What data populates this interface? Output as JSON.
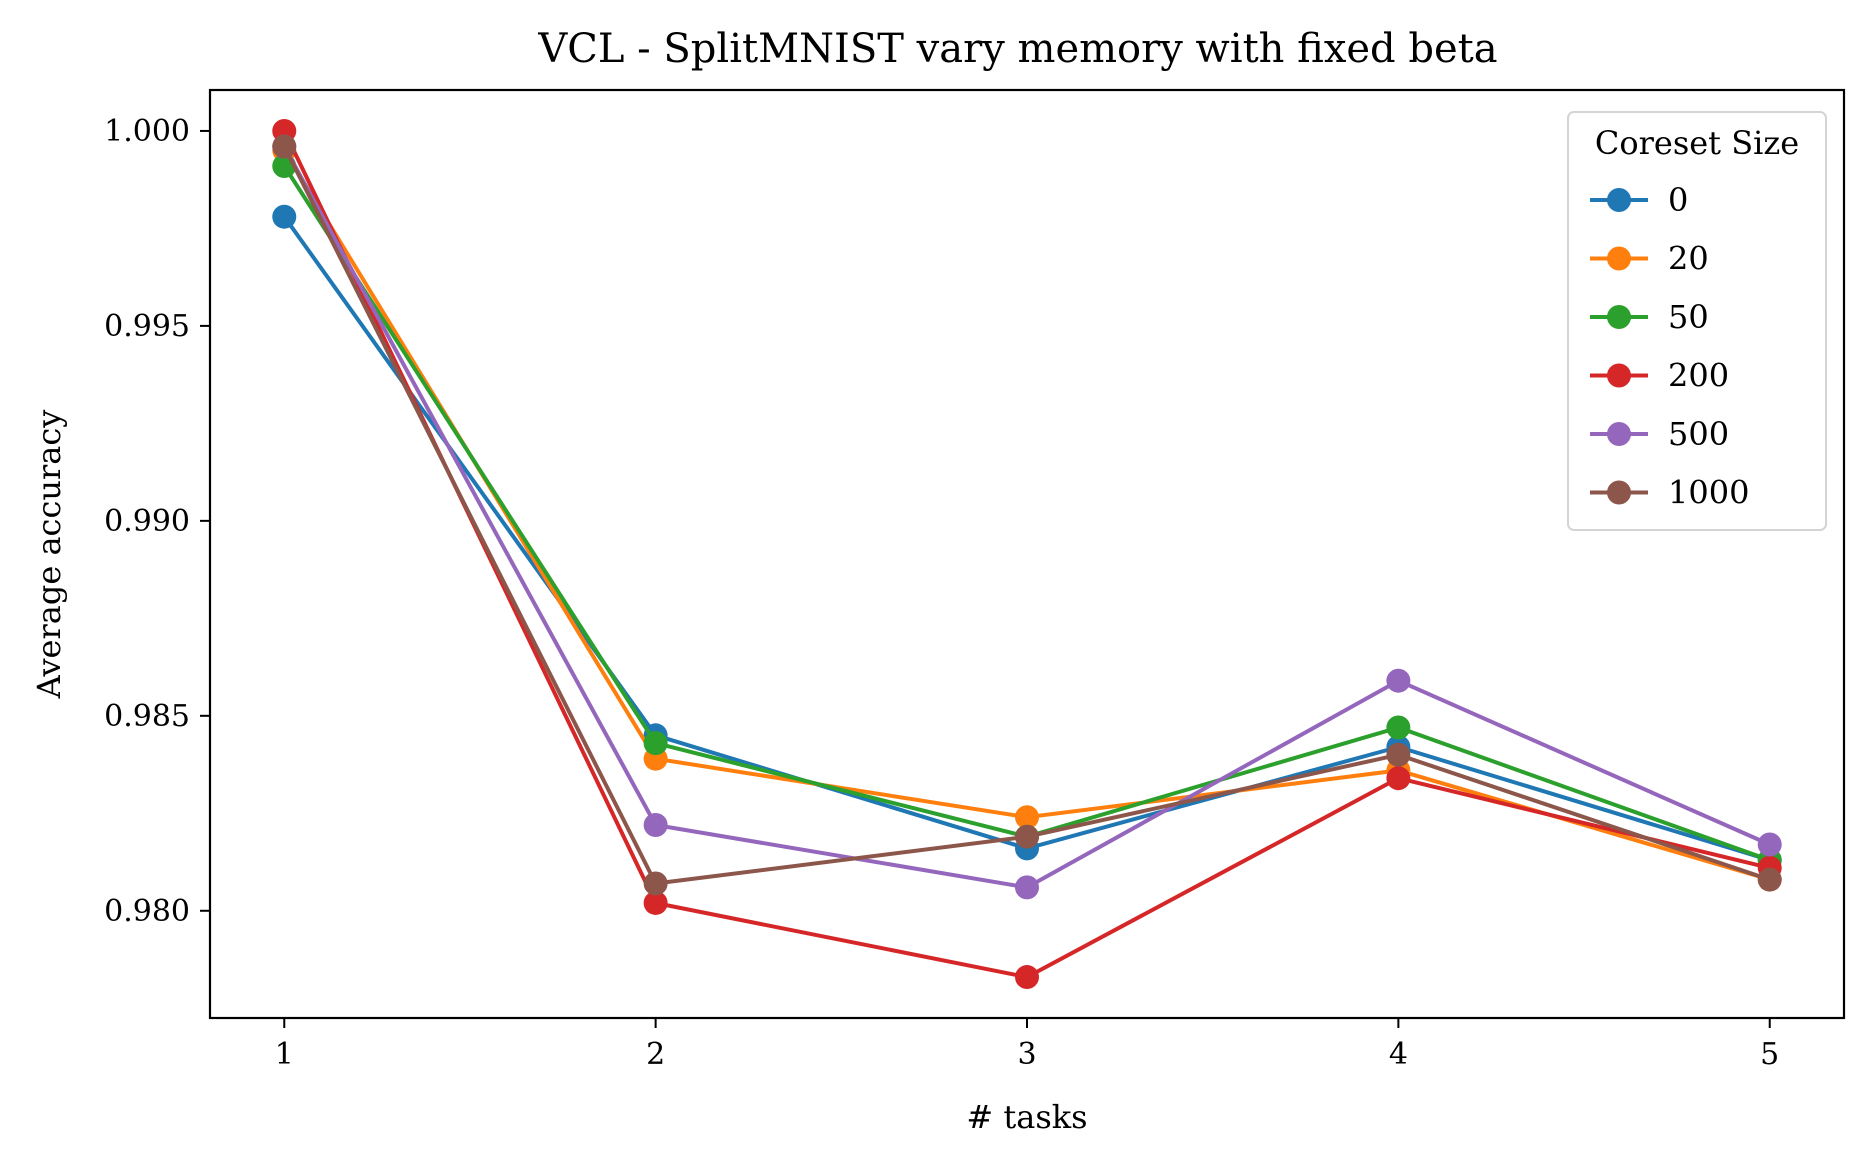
{
  "chart_data": {
    "type": "line",
    "title": "VCL - SplitMNIST vary memory with fixed beta",
    "xlabel": "# tasks",
    "ylabel": "Average accuracy",
    "x": [
      1,
      2,
      3,
      4,
      5
    ],
    "xticks": [
      "1",
      "2",
      "3",
      "4",
      "5"
    ],
    "yticks": [
      "0.980",
      "0.985",
      "0.990",
      "0.995",
      "1.000"
    ],
    "ytick_values": [
      0.98,
      0.985,
      0.99,
      0.995,
      1.0
    ],
    "xlim": [
      0.8,
      5.2
    ],
    "ylim": [
      0.97725,
      1.00105
    ],
    "grid": false,
    "legend": {
      "title": "Coreset Size",
      "placement": "top-right"
    },
    "series": [
      {
        "name": "0",
        "color": "#1f77b4",
        "values": [
          0.9978,
          0.9845,
          0.9816,
          0.9842,
          0.9813
        ]
      },
      {
        "name": "20",
        "color": "#ff7f0e",
        "values": [
          0.9995,
          0.9839,
          0.9824,
          0.9836,
          0.9808
        ]
      },
      {
        "name": "50",
        "color": "#2ca02c",
        "values": [
          0.9991,
          0.9843,
          0.9819,
          0.9847,
          0.9813
        ]
      },
      {
        "name": "200",
        "color": "#d62728",
        "values": [
          1.0,
          0.9802,
          0.9783,
          0.9834,
          0.9811
        ]
      },
      {
        "name": "500",
        "color": "#9467bd",
        "values": [
          0.9996,
          0.9822,
          0.9806,
          0.9859,
          0.9817
        ]
      },
      {
        "name": "1000",
        "color": "#8c564b",
        "values": [
          0.9996,
          0.9807,
          0.9819,
          0.984,
          0.9808
        ]
      }
    ]
  }
}
